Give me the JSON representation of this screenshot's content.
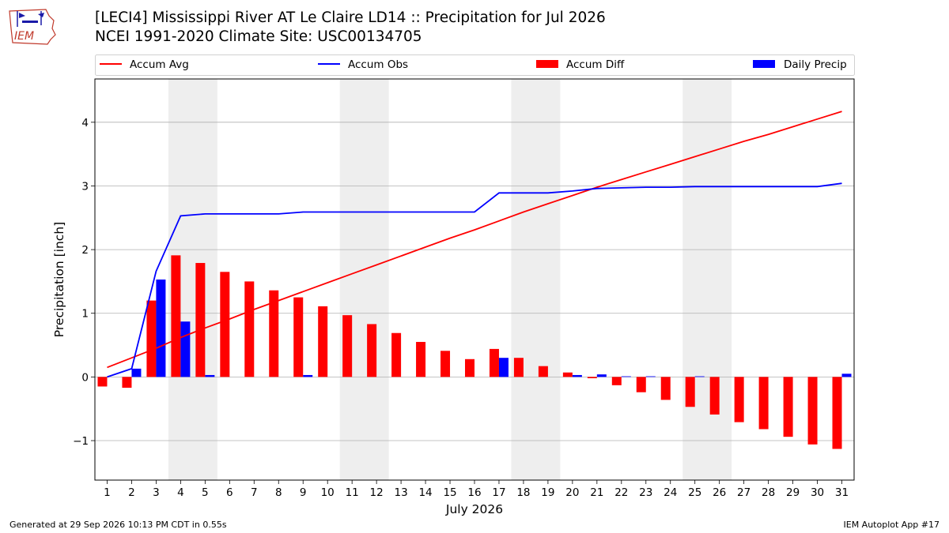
{
  "header": {
    "title_line1": "[LECI4] Mississippi River  AT Le Claire LD14 :: Precipitation for Jul 2026",
    "title_line2": "NCEI 1991-2020 Climate Site: USC00134705",
    "logo_text": "IEM"
  },
  "footer": {
    "generated": "Generated at 29 Sep 2026 10:13 PM CDT in 0.55s",
    "app": "IEM Autoplot App #17"
  },
  "colors": {
    "avg": "#ff0000",
    "obs": "#0000ff",
    "diff": "#ff0000",
    "daily": "#0000ff",
    "weekend": "#eeeeee",
    "grid": "#b0b0b0"
  },
  "chart_data": {
    "type": "bar",
    "xlabel": "July 2026",
    "ylabel": "Precipitation [inch]",
    "xlim": [
      0.5,
      31.5
    ],
    "ylim": [
      -1.62,
      4.68
    ],
    "yticks": [
      -1,
      0,
      1,
      2,
      3,
      4
    ],
    "ytick_labels": [
      "−1",
      "0",
      "1",
      "2",
      "3",
      "4"
    ],
    "grid": "horizontal",
    "legend_position": "top",
    "weekend_shading": [
      [
        3.5,
        5.5
      ],
      [
        10.5,
        12.5
      ],
      [
        17.5,
        19.5
      ],
      [
        24.5,
        26.5
      ]
    ],
    "days": [
      1,
      2,
      3,
      4,
      5,
      6,
      7,
      8,
      9,
      10,
      11,
      12,
      13,
      14,
      15,
      16,
      17,
      18,
      19,
      20,
      21,
      22,
      23,
      24,
      25,
      26,
      27,
      28,
      29,
      30,
      31
    ],
    "series": [
      {
        "name": "Accum Avg",
        "kind": "line",
        "values": [
          0.15,
          0.3,
          0.45,
          0.62,
          0.77,
          0.91,
          1.06,
          1.2,
          1.34,
          1.48,
          1.62,
          1.76,
          1.9,
          2.04,
          2.18,
          2.31,
          2.45,
          2.59,
          2.72,
          2.85,
          2.98,
          3.1,
          3.22,
          3.34,
          3.46,
          3.58,
          3.7,
          3.81,
          3.93,
          4.05,
          4.17
        ]
      },
      {
        "name": "Accum Obs",
        "kind": "line",
        "values": [
          0.0,
          0.13,
          1.66,
          2.53,
          2.56,
          2.56,
          2.56,
          2.56,
          2.59,
          2.59,
          2.59,
          2.59,
          2.59,
          2.59,
          2.59,
          2.59,
          2.89,
          2.89,
          2.89,
          2.92,
          2.96,
          2.97,
          2.98,
          2.98,
          2.99,
          2.99,
          2.99,
          2.99,
          2.99,
          2.99,
          3.04
        ]
      },
      {
        "name": "Accum Diff",
        "kind": "bar",
        "values": [
          -0.15,
          -0.17,
          1.2,
          1.91,
          1.79,
          1.65,
          1.5,
          1.36,
          1.25,
          1.11,
          0.97,
          0.83,
          0.69,
          0.55,
          0.41,
          0.28,
          0.44,
          0.3,
          0.17,
          0.07,
          -0.02,
          -0.13,
          -0.24,
          -0.36,
          -0.47,
          -0.59,
          -0.71,
          -0.82,
          -0.94,
          -1.06,
          -1.13
        ]
      },
      {
        "name": "Daily Precip",
        "kind": "bar",
        "values": [
          0.0,
          0.13,
          1.53,
          0.87,
          0.03,
          0.0,
          0.0,
          0.0,
          0.03,
          0.0,
          0.0,
          0.0,
          0.0,
          0.0,
          0.0,
          0.0,
          0.3,
          0.0,
          0.0,
          0.03,
          0.04,
          0.01,
          0.01,
          0.0,
          0.01,
          0.0,
          0.0,
          0.0,
          0.0,
          0.0,
          0.05
        ]
      }
    ]
  }
}
